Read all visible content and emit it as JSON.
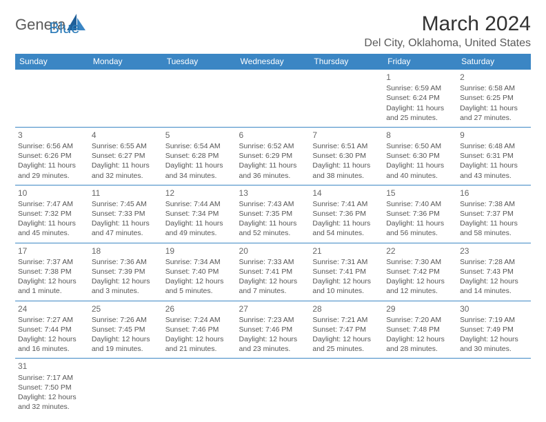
{
  "logo": {
    "text1": "Genera",
    "text2": "Blue"
  },
  "title": "March 2024",
  "location": "Del City, Oklahoma, United States",
  "colors": {
    "header_bg": "#3b86c4",
    "header_text": "#ffffff",
    "border": "#3b86c4",
    "text": "#555555",
    "title": "#333333",
    "logo_gray": "#5a5a5a",
    "logo_blue": "#2a7ab8"
  },
  "typography": {
    "title_fontsize": 30,
    "location_fontsize": 16,
    "dayhead_fontsize": 12,
    "cell_fontsize": 10.5
  },
  "day_headers": [
    "Sunday",
    "Monday",
    "Tuesday",
    "Wednesday",
    "Thursday",
    "Friday",
    "Saturday"
  ],
  "weeks": [
    [
      null,
      null,
      null,
      null,
      null,
      {
        "n": "1",
        "sr": "Sunrise: 6:59 AM",
        "ss": "Sunset: 6:24 PM",
        "d1": "Daylight: 11 hours",
        "d2": "and 25 minutes."
      },
      {
        "n": "2",
        "sr": "Sunrise: 6:58 AM",
        "ss": "Sunset: 6:25 PM",
        "d1": "Daylight: 11 hours",
        "d2": "and 27 minutes."
      }
    ],
    [
      {
        "n": "3",
        "sr": "Sunrise: 6:56 AM",
        "ss": "Sunset: 6:26 PM",
        "d1": "Daylight: 11 hours",
        "d2": "and 29 minutes."
      },
      {
        "n": "4",
        "sr": "Sunrise: 6:55 AM",
        "ss": "Sunset: 6:27 PM",
        "d1": "Daylight: 11 hours",
        "d2": "and 32 minutes."
      },
      {
        "n": "5",
        "sr": "Sunrise: 6:54 AM",
        "ss": "Sunset: 6:28 PM",
        "d1": "Daylight: 11 hours",
        "d2": "and 34 minutes."
      },
      {
        "n": "6",
        "sr": "Sunrise: 6:52 AM",
        "ss": "Sunset: 6:29 PM",
        "d1": "Daylight: 11 hours",
        "d2": "and 36 minutes."
      },
      {
        "n": "7",
        "sr": "Sunrise: 6:51 AM",
        "ss": "Sunset: 6:30 PM",
        "d1": "Daylight: 11 hours",
        "d2": "and 38 minutes."
      },
      {
        "n": "8",
        "sr": "Sunrise: 6:50 AM",
        "ss": "Sunset: 6:30 PM",
        "d1": "Daylight: 11 hours",
        "d2": "and 40 minutes."
      },
      {
        "n": "9",
        "sr": "Sunrise: 6:48 AM",
        "ss": "Sunset: 6:31 PM",
        "d1": "Daylight: 11 hours",
        "d2": "and 43 minutes."
      }
    ],
    [
      {
        "n": "10",
        "sr": "Sunrise: 7:47 AM",
        "ss": "Sunset: 7:32 PM",
        "d1": "Daylight: 11 hours",
        "d2": "and 45 minutes."
      },
      {
        "n": "11",
        "sr": "Sunrise: 7:45 AM",
        "ss": "Sunset: 7:33 PM",
        "d1": "Daylight: 11 hours",
        "d2": "and 47 minutes."
      },
      {
        "n": "12",
        "sr": "Sunrise: 7:44 AM",
        "ss": "Sunset: 7:34 PM",
        "d1": "Daylight: 11 hours",
        "d2": "and 49 minutes."
      },
      {
        "n": "13",
        "sr": "Sunrise: 7:43 AM",
        "ss": "Sunset: 7:35 PM",
        "d1": "Daylight: 11 hours",
        "d2": "and 52 minutes."
      },
      {
        "n": "14",
        "sr": "Sunrise: 7:41 AM",
        "ss": "Sunset: 7:36 PM",
        "d1": "Daylight: 11 hours",
        "d2": "and 54 minutes."
      },
      {
        "n": "15",
        "sr": "Sunrise: 7:40 AM",
        "ss": "Sunset: 7:36 PM",
        "d1": "Daylight: 11 hours",
        "d2": "and 56 minutes."
      },
      {
        "n": "16",
        "sr": "Sunrise: 7:38 AM",
        "ss": "Sunset: 7:37 PM",
        "d1": "Daylight: 11 hours",
        "d2": "and 58 minutes."
      }
    ],
    [
      {
        "n": "17",
        "sr": "Sunrise: 7:37 AM",
        "ss": "Sunset: 7:38 PM",
        "d1": "Daylight: 12 hours",
        "d2": "and 1 minute."
      },
      {
        "n": "18",
        "sr": "Sunrise: 7:36 AM",
        "ss": "Sunset: 7:39 PM",
        "d1": "Daylight: 12 hours",
        "d2": "and 3 minutes."
      },
      {
        "n": "19",
        "sr": "Sunrise: 7:34 AM",
        "ss": "Sunset: 7:40 PM",
        "d1": "Daylight: 12 hours",
        "d2": "and 5 minutes."
      },
      {
        "n": "20",
        "sr": "Sunrise: 7:33 AM",
        "ss": "Sunset: 7:41 PM",
        "d1": "Daylight: 12 hours",
        "d2": "and 7 minutes."
      },
      {
        "n": "21",
        "sr": "Sunrise: 7:31 AM",
        "ss": "Sunset: 7:41 PM",
        "d1": "Daylight: 12 hours",
        "d2": "and 10 minutes."
      },
      {
        "n": "22",
        "sr": "Sunrise: 7:30 AM",
        "ss": "Sunset: 7:42 PM",
        "d1": "Daylight: 12 hours",
        "d2": "and 12 minutes."
      },
      {
        "n": "23",
        "sr": "Sunrise: 7:28 AM",
        "ss": "Sunset: 7:43 PM",
        "d1": "Daylight: 12 hours",
        "d2": "and 14 minutes."
      }
    ],
    [
      {
        "n": "24",
        "sr": "Sunrise: 7:27 AM",
        "ss": "Sunset: 7:44 PM",
        "d1": "Daylight: 12 hours",
        "d2": "and 16 minutes."
      },
      {
        "n": "25",
        "sr": "Sunrise: 7:26 AM",
        "ss": "Sunset: 7:45 PM",
        "d1": "Daylight: 12 hours",
        "d2": "and 19 minutes."
      },
      {
        "n": "26",
        "sr": "Sunrise: 7:24 AM",
        "ss": "Sunset: 7:46 PM",
        "d1": "Daylight: 12 hours",
        "d2": "and 21 minutes."
      },
      {
        "n": "27",
        "sr": "Sunrise: 7:23 AM",
        "ss": "Sunset: 7:46 PM",
        "d1": "Daylight: 12 hours",
        "d2": "and 23 minutes."
      },
      {
        "n": "28",
        "sr": "Sunrise: 7:21 AM",
        "ss": "Sunset: 7:47 PM",
        "d1": "Daylight: 12 hours",
        "d2": "and 25 minutes."
      },
      {
        "n": "29",
        "sr": "Sunrise: 7:20 AM",
        "ss": "Sunset: 7:48 PM",
        "d1": "Daylight: 12 hours",
        "d2": "and 28 minutes."
      },
      {
        "n": "30",
        "sr": "Sunrise: 7:19 AM",
        "ss": "Sunset: 7:49 PM",
        "d1": "Daylight: 12 hours",
        "d2": "and 30 minutes."
      }
    ],
    [
      {
        "n": "31",
        "sr": "Sunrise: 7:17 AM",
        "ss": "Sunset: 7:50 PM",
        "d1": "Daylight: 12 hours",
        "d2": "and 32 minutes."
      },
      null,
      null,
      null,
      null,
      null,
      null
    ]
  ]
}
